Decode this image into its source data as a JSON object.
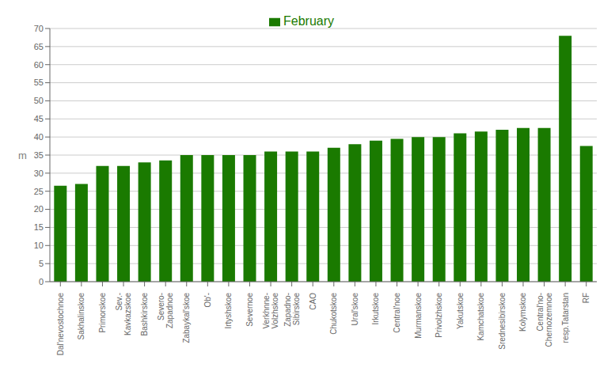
{
  "chart_data": {
    "type": "bar",
    "categories": [
      "Dal'nevostochnoe",
      "Sakhalinskoe",
      "Primorskoe",
      "Sev.-\nKavkazskoe",
      "Bashkirskoe",
      "Severo-\nZapadnoe",
      "Zabaykal'skoe",
      "Ob'-",
      "Irtyshskoe",
      "Severnoe",
      "Verkhnne-\nVolzhskoe",
      "Zapadno-\nSibirskoe",
      "CAO",
      "Chukotskoe",
      "Ural'skoe",
      "Irkutskoe",
      "Central'noe",
      "Murmanskoe",
      "Privolzhskoe",
      "Yakutskoe",
      "Kamchatskoe",
      "Srednesibirskoe",
      "Kolymskoe",
      "Central'no-\nChernozemnoe",
      "resp.Tatarstan",
      "RF"
    ],
    "series": [
      {
        "name": "February",
        "color": "#1a7a00",
        "values": [
          26.5,
          27.0,
          32.0,
          32.0,
          33.0,
          33.5,
          35.0,
          35.0,
          35.0,
          35.0,
          36.0,
          36.0,
          36.0,
          37.0,
          38.0,
          39.0,
          39.5,
          40.0,
          40.0,
          41.0,
          41.5,
          42.0,
          42.5,
          42.5,
          68.0,
          37.5
        ]
      }
    ],
    "ylabel": "m",
    "ylim": [
      0,
      70
    ],
    "yticks": [
      0,
      5,
      10,
      15,
      20,
      25,
      30,
      35,
      40,
      45,
      50,
      55,
      60,
      65,
      70
    ],
    "grid": true,
    "legend": "top"
  }
}
